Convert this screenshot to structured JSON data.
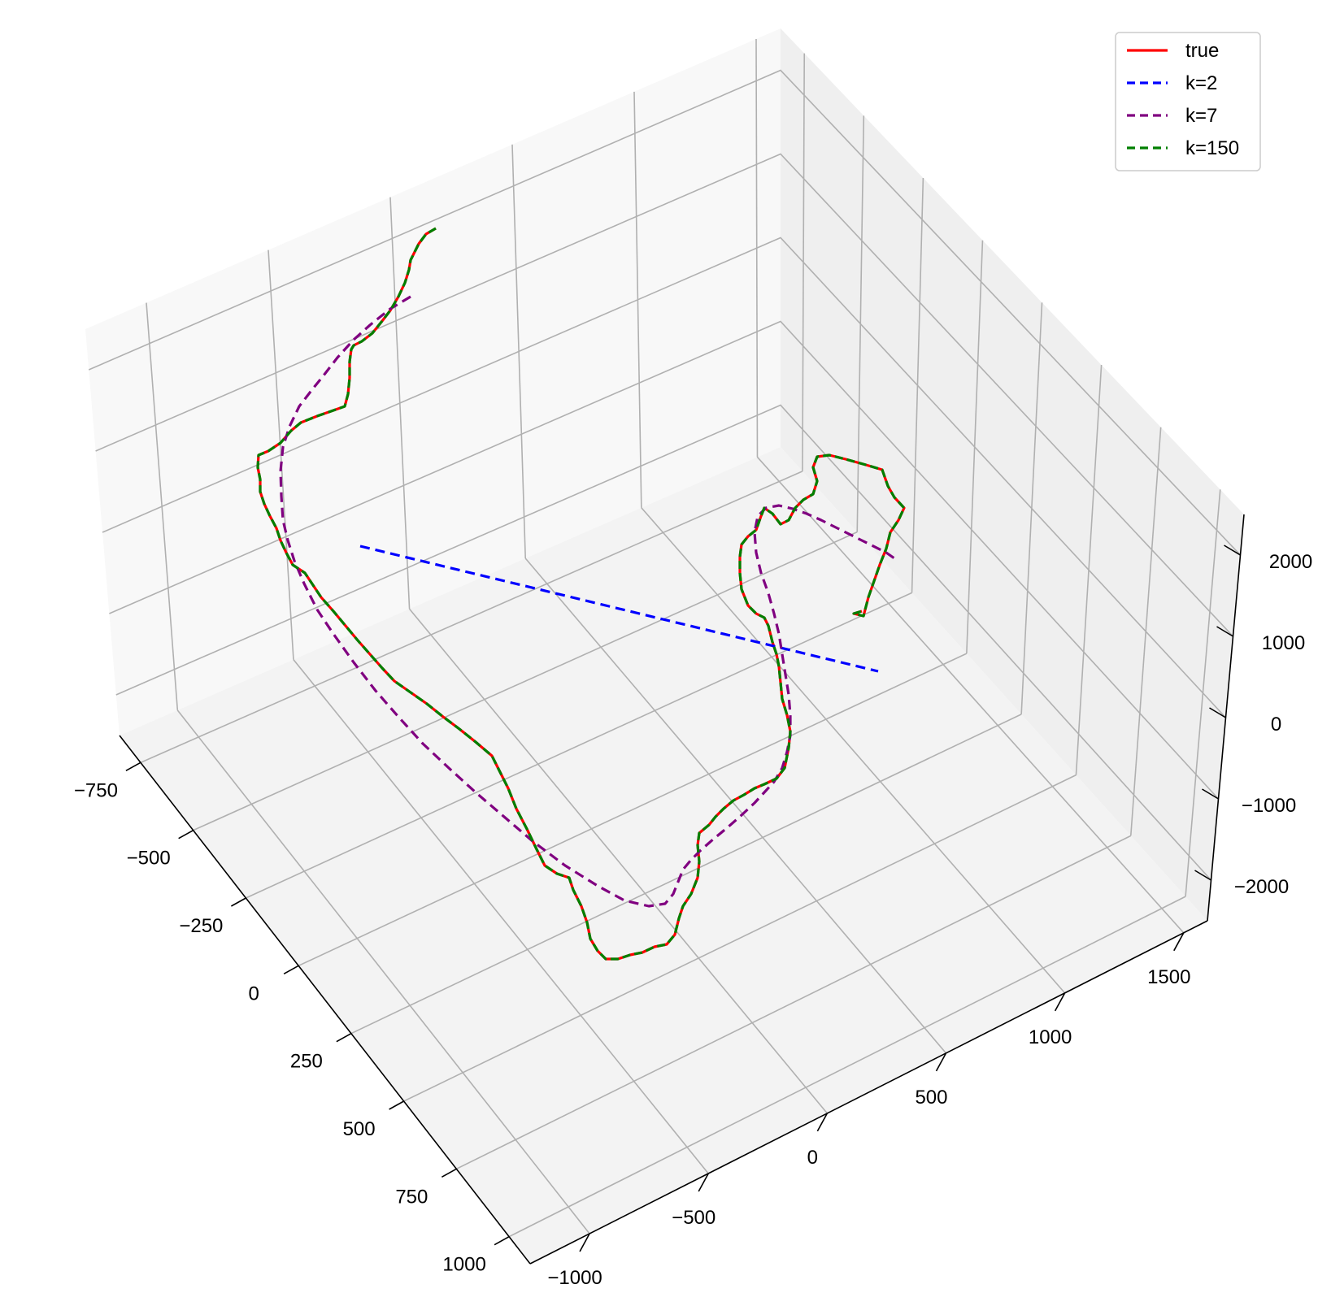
{
  "chart_data": {
    "type": "line",
    "projection": "3d",
    "title": "",
    "xlabel": "",
    "ylabel": "",
    "zlabel": "",
    "grid": true,
    "legend_placement": "top-right",
    "axes": {
      "x": {
        "ticks": [
          -750,
          -500,
          -250,
          0,
          250,
          500,
          750,
          1000
        ],
        "tick_labels": [
          "−750",
          "−500",
          "−250",
          "0",
          "250",
          "500",
          "750",
          "1000"
        ]
      },
      "y": {
        "ticks": [
          -1000,
          -500,
          0,
          500,
          1000,
          1500
        ],
        "tick_labels": [
          "−1000",
          "−500",
          "0",
          "500",
          "1000",
          "1500"
        ]
      },
      "z": {
        "ticks": [
          -2000,
          -1000,
          0,
          1000,
          2000
        ],
        "tick_labels": [
          "−2000",
          "−1000",
          "0",
          "1000",
          "2000"
        ]
      }
    },
    "series": [
      {
        "name": "true",
        "color": "#ff0000",
        "style": "solid"
      },
      {
        "name": "k=2",
        "color": "#0000ff",
        "style": "dashed"
      },
      {
        "name": "k=7",
        "color": "#800080",
        "style": "dashed"
      },
      {
        "name": "k=150",
        "color": "#008000",
        "style": "dashed"
      }
    ]
  }
}
